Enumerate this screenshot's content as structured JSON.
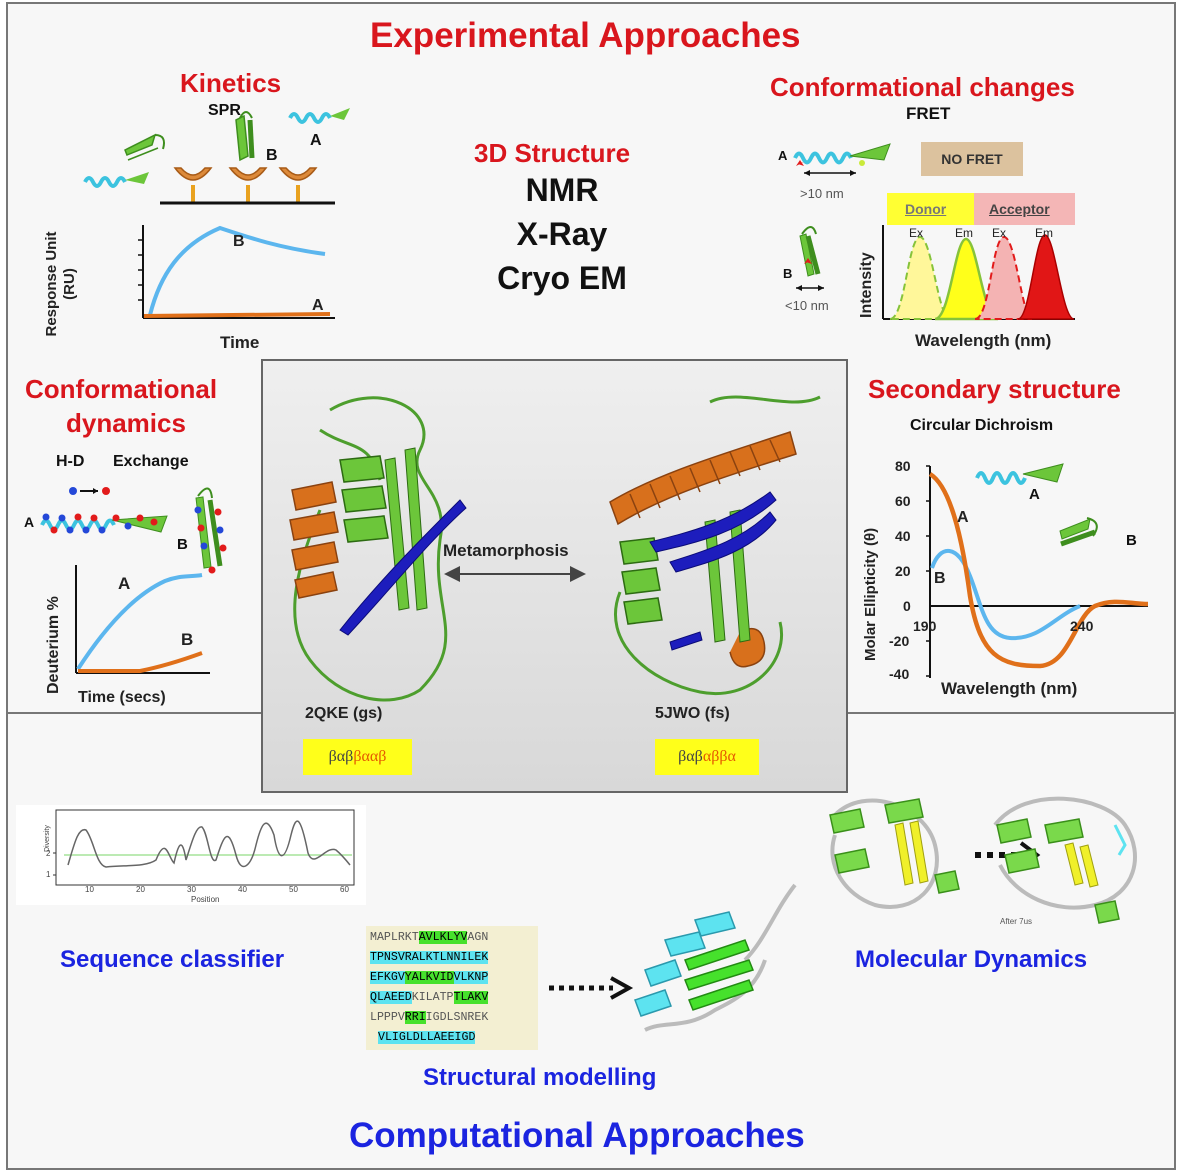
{
  "titles": {
    "experimental": "Experimental Approaches",
    "computational": "Computational Approaches"
  },
  "kinetics": {
    "title": "Kinetics",
    "method": "SPR",
    "label_a": "A",
    "label_b": "B",
    "ylabel": "Response Unit\n(RU)",
    "xlabel": "Time",
    "curve_a": "A",
    "curve_b": "B"
  },
  "structure3d": {
    "title": "3D Structure",
    "methods": [
      "NMR",
      "X-Ray",
      "Cryo EM"
    ]
  },
  "conformational_changes": {
    "title": "Conformational changes",
    "method": "FRET",
    "label_a": "A",
    "label_b": "B",
    "dist_far": ">10 nm",
    "dist_near": "<10 nm",
    "no_fret": "NO FRET",
    "donor": "Donor",
    "acceptor": "Acceptor",
    "peaks": [
      "Ex",
      "Em",
      "Ex",
      "Em"
    ],
    "ylabel": "Intensity",
    "xlabel": "Wavelength (nm)"
  },
  "conformational_dynamics": {
    "title_line1": "Conformational",
    "title_line2": "dynamics",
    "method_hd": "H-D",
    "method_ex": "Exchange",
    "label_a": "A",
    "label_b": "B",
    "ylabel": "Deuterium %",
    "xlabel": "Time (secs)",
    "curve_a": "A",
    "curve_b": "B"
  },
  "secondary_structure": {
    "title": "Secondary structure",
    "method": "Circular Dichroism",
    "ylabel": "Molar Ellipticity (θ)",
    "xlabel": "Wavelength (nm)",
    "yticks": [
      "80",
      "60",
      "40",
      "20",
      "0",
      "-20",
      "-40"
    ],
    "xtick_left": "190",
    "xtick_right": "240",
    "label_a": "A",
    "label_b": "B",
    "curve_a": "A",
    "curve_b": "B"
  },
  "center": {
    "metamorphosis": "Metamorphosis",
    "left_id": "2QKE (gs)",
    "right_id": "5JWO (fs)",
    "left_topology_a": "βαβ",
    "left_topology_b": "βααβ",
    "right_topology_a": "βαβ",
    "right_topology_b": "αββα"
  },
  "computational": {
    "sequence_classifier": "Sequence classifier",
    "structural_modelling": "Structural modelling",
    "molecular_dynamics": "Molecular Dynamics",
    "plot_ylabel": "Diversity",
    "plot_xlabel": "Position",
    "plot_xticks": [
      "10",
      "20",
      "30",
      "40",
      "50",
      "60"
    ],
    "plot_yticks": [
      "2",
      "1"
    ],
    "md_caption": "After 7us",
    "sequence_lines": [
      [
        "MAPLRKT",
        "AVLKLYV",
        "AGN"
      ],
      [
        "TPNSVRALKTLNNILEK",
        "",
        ""
      ],
      [
        "EFKGV",
        "YALKVID",
        "VLKNP"
      ],
      [
        "QLAEED",
        "KILATP",
        "TLAKV"
      ],
      [
        "LPPPV",
        "RRI",
        "IGDLSNREK"
      ],
      [
        "VLIGLDLLAEEIGD",
        "",
        ""
      ]
    ]
  },
  "colors": {
    "red_title": "#d9161d",
    "blue_title": "#1b24e0",
    "helix": "#5fd3e8",
    "strand_green": "#6cc63a",
    "orange": "#d8701c",
    "blue_strand": "#1d1dbd",
    "badge": "#ffff1a"
  }
}
